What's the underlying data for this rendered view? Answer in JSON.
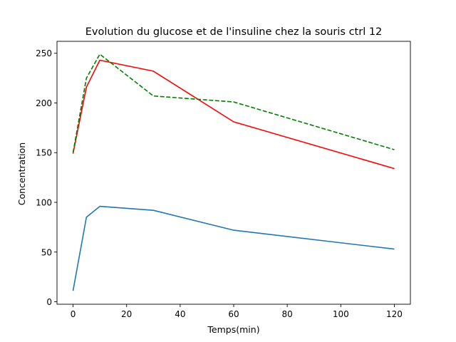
{
  "chart_data": {
    "type": "line",
    "title": "Evolution  du glucose et de l'insuline chez la souris ctrl 12",
    "xlabel": "Temps(min)",
    "ylabel": "Concentration",
    "xlim": [
      -6,
      126
    ],
    "ylim": [
      -2.5,
      262
    ],
    "xticks": [
      0,
      20,
      40,
      60,
      80,
      100,
      120
    ],
    "yticks": [
      0,
      50,
      100,
      150,
      200,
      250
    ],
    "grid": false,
    "legend": "none",
    "series": [
      {
        "x": [
          0,
          5,
          10,
          30,
          60,
          120
        ],
        "values": [
          11,
          85,
          96,
          92,
          72,
          53
        ],
        "color": "#1f77b4",
        "style": "solid"
      },
      {
        "x": [
          0,
          5,
          10,
          30,
          60,
          120
        ],
        "values": [
          149,
          216,
          243,
          232,
          181,
          134
        ],
        "color": "#ff0000",
        "style": "solid"
      },
      {
        "x": [
          0,
          5,
          10,
          30,
          60,
          120
        ],
        "values": [
          150,
          225,
          249,
          207,
          201,
          153
        ],
        "color": "#008000",
        "style": "dashed"
      }
    ]
  }
}
